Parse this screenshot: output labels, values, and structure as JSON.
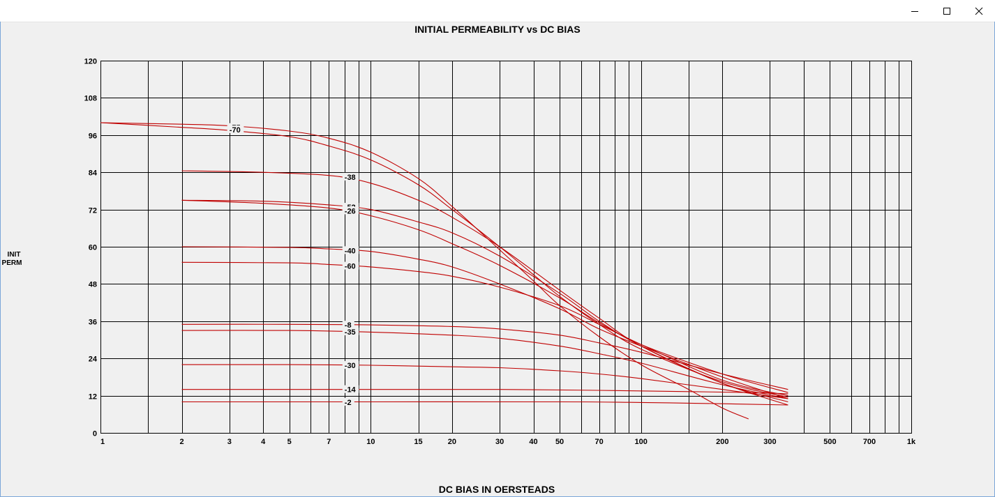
{
  "window": {
    "buttons": [
      {
        "name": "minimize",
        "icon": "minimize-icon"
      },
      {
        "name": "maximize",
        "icon": "maximize-icon"
      },
      {
        "name": "close",
        "icon": "close-icon"
      }
    ]
  },
  "chart_data": {
    "type": "line",
    "title": "INITIAL PERMEABILITY vs DC BIAS",
    "xlabel": "DC BIAS IN OERSTEADS",
    "ylabel_lines": [
      "INIT",
      "PERM"
    ],
    "x_scale": "log",
    "xlim": [
      1,
      1000
    ],
    "ylim": [
      0,
      120
    ],
    "grid": true,
    "x_ticks": [
      {
        "v": 1,
        "label": "1"
      },
      {
        "v": 2,
        "label": "2"
      },
      {
        "v": 3,
        "label": "3"
      },
      {
        "v": 4,
        "label": "4"
      },
      {
        "v": 5,
        "label": "5"
      },
      {
        "v": 7,
        "label": "7"
      },
      {
        "v": 10,
        "label": "10"
      },
      {
        "v": 15,
        "label": "15"
      },
      {
        "v": 20,
        "label": "20"
      },
      {
        "v": 30,
        "label": "30"
      },
      {
        "v": 40,
        "label": "40"
      },
      {
        "v": 50,
        "label": "50"
      },
      {
        "v": 70,
        "label": "70"
      },
      {
        "v": 100,
        "label": "100"
      },
      {
        "v": 200,
        "label": "200"
      },
      {
        "v": 300,
        "label": "300"
      },
      {
        "v": 500,
        "label": "500"
      },
      {
        "v": 700,
        "label": "700"
      },
      {
        "v": 1000,
        "label": "1k"
      }
    ],
    "x_gridlines": [
      1,
      1.5,
      2,
      3,
      4,
      5,
      6,
      7,
      8,
      9,
      10,
      15,
      20,
      30,
      40,
      50,
      60,
      70,
      80,
      90,
      100,
      150,
      200,
      300,
      400,
      500,
      600,
      700,
      800,
      900,
      1000
    ],
    "y_ticks": [
      0,
      12,
      24,
      36,
      48,
      60,
      72,
      84,
      96,
      108,
      120
    ],
    "colors": {
      "series": "#c00000",
      "grid": "#000000",
      "background": "#f0f0f0"
    },
    "series": [
      {
        "name": "-75",
        "label_at": [
          3,
          98.5
        ],
        "points": [
          [
            1,
            100
          ],
          [
            2,
            99.5
          ],
          [
            3,
            99
          ],
          [
            5,
            97.3
          ],
          [
            7,
            95
          ],
          [
            10,
            90.5
          ],
          [
            15,
            82
          ],
          [
            20,
            73
          ],
          [
            30,
            59
          ],
          [
            40,
            49
          ],
          [
            50,
            41
          ],
          [
            70,
            31
          ],
          [
            100,
            22
          ],
          [
            150,
            14
          ],
          [
            200,
            8
          ],
          [
            250,
            4.5
          ]
        ]
      },
      {
        "name": "-70",
        "label_at": [
          3,
          97.8
        ],
        "points": [
          [
            1,
            100
          ],
          [
            2,
            98.5
          ],
          [
            3,
            97.5
          ],
          [
            5,
            95.5
          ],
          [
            7,
            92.5
          ],
          [
            10,
            88
          ],
          [
            15,
            80
          ],
          [
            20,
            72
          ],
          [
            30,
            60
          ],
          [
            40,
            51
          ],
          [
            50,
            44
          ],
          [
            70,
            35
          ],
          [
            100,
            27
          ],
          [
            200,
            16.5
          ],
          [
            350,
            11.5
          ]
        ]
      },
      {
        "name": "-38",
        "label_at": [
          8,
          82.5
        ],
        "points": [
          [
            2,
            84.5
          ],
          [
            4,
            84
          ],
          [
            7,
            83
          ],
          [
            10,
            80.5
          ],
          [
            15,
            75
          ],
          [
            20,
            69.5
          ],
          [
            30,
            60
          ],
          [
            50,
            46
          ],
          [
            70,
            37
          ],
          [
            100,
            28
          ],
          [
            200,
            16
          ],
          [
            350,
            10
          ]
        ]
      },
      {
        "name": "-52",
        "label_at": [
          8,
          72.8
        ],
        "points": [
          [
            2,
            75
          ],
          [
            4,
            74.7
          ],
          [
            7,
            73.5
          ],
          [
            10,
            72
          ],
          [
            15,
            68
          ],
          [
            20,
            64.5
          ],
          [
            30,
            57
          ],
          [
            50,
            45
          ],
          [
            70,
            36
          ],
          [
            100,
            28
          ],
          [
            200,
            16
          ],
          [
            350,
            9
          ]
        ]
      },
      {
        "name": "-26",
        "label_at": [
          8,
          71.6
        ],
        "points": [
          [
            2,
            75
          ],
          [
            4,
            74
          ],
          [
            7,
            72.5
          ],
          [
            10,
            70
          ],
          [
            15,
            65.5
          ],
          [
            20,
            61
          ],
          [
            30,
            54
          ],
          [
            50,
            43.5
          ],
          [
            70,
            35.5
          ],
          [
            100,
            28.5
          ],
          [
            200,
            19
          ],
          [
            350,
            13
          ]
        ]
      },
      {
        "name": "-40",
        "label_at": [
          8,
          58.8
        ],
        "points": [
          [
            2,
            60
          ],
          [
            5,
            59.8
          ],
          [
            7,
            59.3
          ],
          [
            10,
            58.5
          ],
          [
            15,
            56
          ],
          [
            20,
            53.5
          ],
          [
            30,
            48
          ],
          [
            50,
            40
          ],
          [
            70,
            33.5
          ],
          [
            100,
            28
          ],
          [
            200,
            18
          ],
          [
            350,
            11
          ]
        ]
      },
      {
        "name": "-60",
        "label_at": [
          8,
          53.8
        ],
        "points": [
          [
            2,
            55
          ],
          [
            5,
            54.8
          ],
          [
            7,
            54.3
          ],
          [
            10,
            53.5
          ],
          [
            15,
            52
          ],
          [
            20,
            50.5
          ],
          [
            30,
            47
          ],
          [
            50,
            41
          ],
          [
            70,
            35
          ],
          [
            100,
            28.5
          ],
          [
            200,
            17
          ],
          [
            350,
            12
          ]
        ]
      },
      {
        "name": "-8",
        "label_at": [
          8,
          34.8
        ],
        "points": [
          [
            2,
            35
          ],
          [
            5,
            35
          ],
          [
            10,
            34.8
          ],
          [
            20,
            34.3
          ],
          [
            30,
            33.5
          ],
          [
            50,
            31.5
          ],
          [
            70,
            29
          ],
          [
            100,
            26
          ],
          [
            200,
            19
          ],
          [
            350,
            14
          ]
        ]
      },
      {
        "name": "-35",
        "label_at": [
          8,
          32.6
        ],
        "points": [
          [
            2,
            33
          ],
          [
            5,
            33
          ],
          [
            10,
            32.5
          ],
          [
            20,
            31.5
          ],
          [
            30,
            30.5
          ],
          [
            50,
            28
          ],
          [
            70,
            25.5
          ],
          [
            100,
            22.5
          ],
          [
            200,
            15.5
          ],
          [
            350,
            11
          ]
        ]
      },
      {
        "name": "-30",
        "label_at": [
          8,
          21.8
        ],
        "points": [
          [
            2,
            22
          ],
          [
            5,
            22
          ],
          [
            10,
            21.8
          ],
          [
            20,
            21.3
          ],
          [
            30,
            21
          ],
          [
            50,
            20
          ],
          [
            70,
            19
          ],
          [
            100,
            17.5
          ],
          [
            200,
            14
          ],
          [
            350,
            11
          ]
        ]
      },
      {
        "name": "-14",
        "label_at": [
          8,
          14
        ],
        "points": [
          [
            2,
            14
          ],
          [
            10,
            14
          ],
          [
            30,
            14
          ],
          [
            70,
            13.7
          ],
          [
            150,
            13.3
          ],
          [
            250,
            13
          ],
          [
            350,
            12.6
          ]
        ]
      },
      {
        "name": "-2",
        "label_at": [
          8,
          9.9
        ],
        "points": [
          [
            2,
            10
          ],
          [
            10,
            10
          ],
          [
            50,
            10
          ],
          [
            100,
            9.8
          ],
          [
            200,
            9.4
          ],
          [
            350,
            9
          ]
        ]
      }
    ]
  }
}
